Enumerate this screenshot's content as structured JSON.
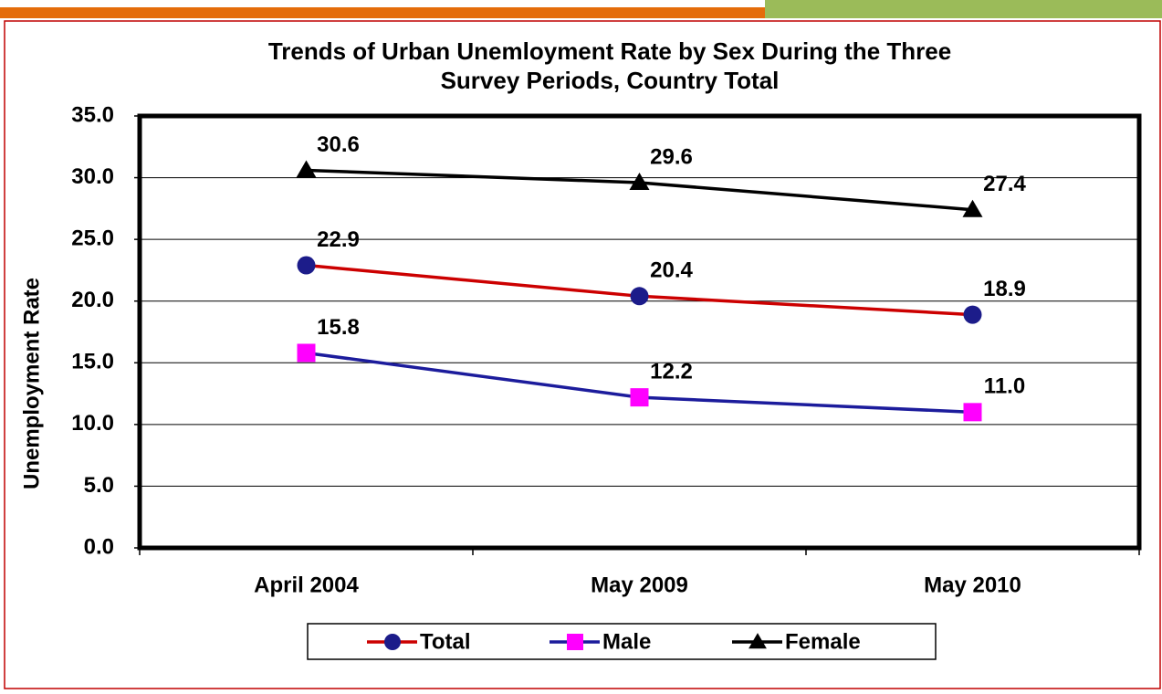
{
  "chart_data": {
    "type": "line",
    "title": "Trends of Urban Unemloyment Rate by Sex During the Three",
    "subtitle": "Survey Periods, Country Total",
    "y_label": "Unemployment Rate",
    "categories": [
      "April 2004",
      "May 2009",
      "May 2010"
    ],
    "series": [
      {
        "name": "Total",
        "color": "#cc0000",
        "marker_color": "#1c1c8a",
        "marker": "circle",
        "values": [
          22.9,
          20.4,
          18.9
        ],
        "value_labels": [
          "22.9",
          "20.4",
          "18.9"
        ]
      },
      {
        "name": "Male",
        "color": "#1c1c9c",
        "marker_color": "#ff00ff",
        "marker": "square",
        "values": [
          15.8,
          12.2,
          11.0
        ],
        "value_labels": [
          "15.8",
          "12.2",
          "11.0"
        ]
      },
      {
        "name": "Female",
        "color": "#000000",
        "marker_color": "#000000",
        "marker": "triangle",
        "values": [
          30.6,
          29.6,
          27.4
        ],
        "value_labels": [
          "30.6",
          "29.6",
          "27.4"
        ]
      }
    ],
    "ylim": [
      0,
      35
    ],
    "yticks": [
      {
        "value": 0,
        "label": "0.0"
      },
      {
        "value": 5,
        "label": "5.0"
      },
      {
        "value": 10,
        "label": "10.0"
      },
      {
        "value": 15,
        "label": "15.0"
      },
      {
        "value": 20,
        "label": "20.0"
      },
      {
        "value": 25,
        "label": "25.0"
      },
      {
        "value": 30,
        "label": "30.0"
      },
      {
        "value": 35,
        "label": "35.0"
      }
    ],
    "grid": true,
    "legend": "bottom"
  }
}
